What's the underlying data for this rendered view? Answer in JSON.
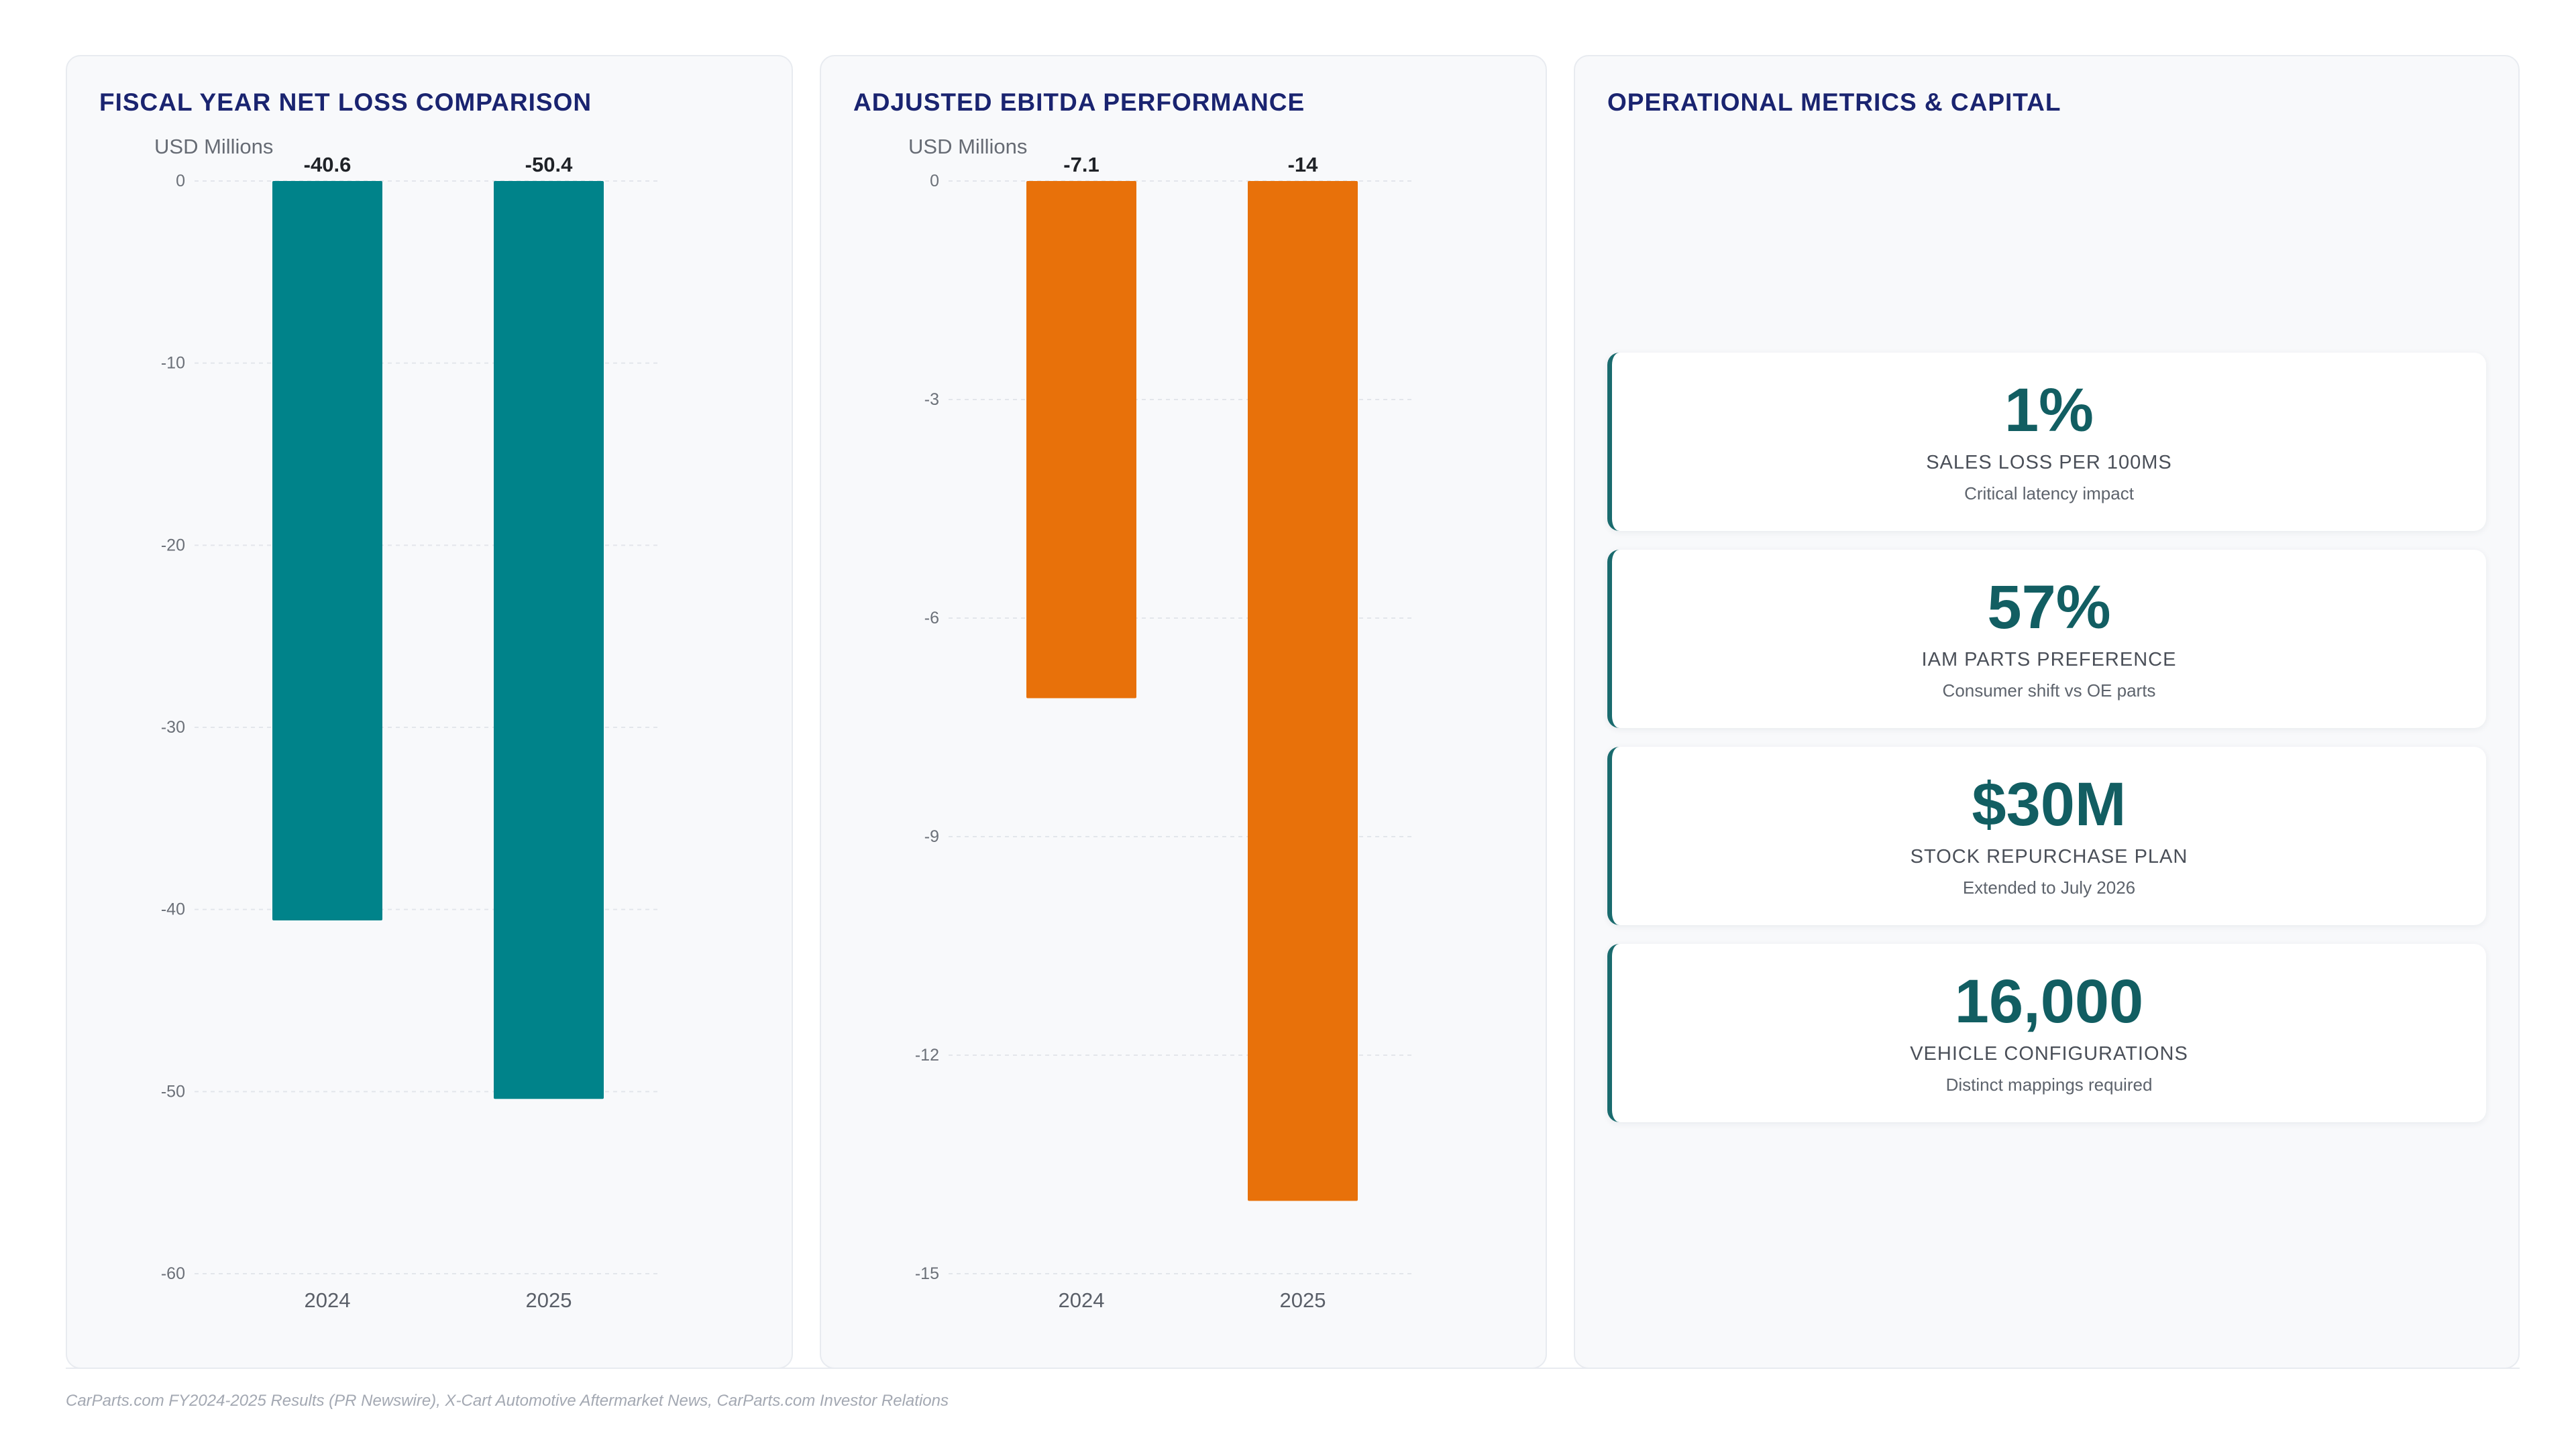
{
  "panels": {
    "net_loss": {
      "title": "FISCAL YEAR NET LOSS COMPARISON"
    },
    "ebitda": {
      "title": "ADJUSTED EBITDA PERFORMANCE"
    },
    "ops": {
      "title": "OPERATIONAL METRICS & CAPITAL"
    }
  },
  "chart_data": [
    {
      "type": "bar",
      "title": "FISCAL YEAR NET LOSS COMPARISON",
      "ylabel": "USD Millions",
      "categories": [
        "2024",
        "2025"
      ],
      "values": [
        -40.6,
        -50.4
      ],
      "value_labels": [
        "-40.6",
        "-50.4"
      ],
      "ylim": [
        -60,
        0
      ],
      "yticks": [
        0,
        -10,
        -20,
        -30,
        -40,
        -50,
        -60
      ],
      "grid": true,
      "color": "#00838a"
    },
    {
      "type": "bar",
      "title": "ADJUSTED EBITDA PERFORMANCE",
      "ylabel": "USD Millions",
      "categories": [
        "2024",
        "2025"
      ],
      "values": [
        -7.1,
        -14
      ],
      "value_labels": [
        "-7.1",
        "-14"
      ],
      "ylim": [
        -15,
        0
      ],
      "yticks": [
        0,
        -3,
        -6,
        -9,
        -12,
        -15
      ],
      "grid": true,
      "color": "#e8710a"
    }
  ],
  "metrics": [
    {
      "value": "1%",
      "label": "SALES LOSS PER 100MS",
      "sub": "Critical latency impact"
    },
    {
      "value": "57%",
      "label": "IAM PARTS PREFERENCE",
      "sub": "Consumer shift vs OE parts"
    },
    {
      "value": "$30M",
      "label": "STOCK REPURCHASE PLAN",
      "sub": "Extended to July 2026"
    },
    {
      "value": "16,000",
      "label": "VEHICLE CONFIGURATIONS",
      "sub": "Distinct mappings required"
    }
  ],
  "source": "CarParts.com FY2024-2025 Results (PR Newswire), X-Cart Automotive Aftermarket News, CarParts.com Investor Relations",
  "colors": {
    "title": "#1a2470",
    "accent": "#125e62",
    "net_loss_bar": "#00838a",
    "ebitda_bar": "#e8710a"
  }
}
